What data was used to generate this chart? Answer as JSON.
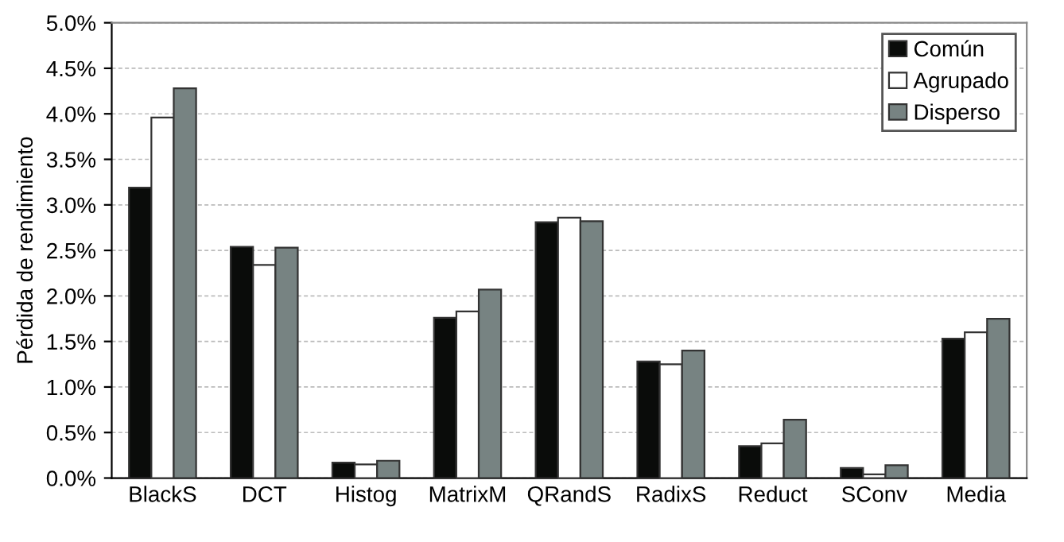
{
  "chart_data": {
    "type": "bar",
    "ylabel": "Pérdida de rendimiento",
    "categories": [
      "BlackS",
      "DCT",
      "Histog",
      "MatrixM",
      "QRandS",
      "RadixS",
      "Reduct",
      "SConv",
      "Media"
    ],
    "series": [
      {
        "name": "Común",
        "color": "#0a0c0a",
        "values": [
          3.19,
          2.54,
          0.17,
          1.76,
          2.81,
          1.28,
          0.35,
          0.11,
          1.53
        ]
      },
      {
        "name": "Agrupado",
        "color": "#ffffff",
        "values": [
          3.96,
          2.34,
          0.15,
          1.83,
          2.86,
          1.25,
          0.38,
          0.04,
          1.6
        ]
      },
      {
        "name": "Disperso",
        "color": "#778382",
        "values": [
          4.28,
          2.53,
          0.19,
          2.07,
          2.82,
          1.4,
          0.64,
          0.14,
          1.75
        ]
      }
    ],
    "ylim": [
      0,
      5
    ],
    "yticks": [
      {
        "value": 0,
        "label": "0.0%"
      },
      {
        "value": 0.5,
        "label": "0.5%"
      },
      {
        "value": 1,
        "label": "1.0%"
      },
      {
        "value": 1.5,
        "label": "1.5%"
      },
      {
        "value": 2,
        "label": "2.0%"
      },
      {
        "value": 2.5,
        "label": "2.5%"
      },
      {
        "value": 3,
        "label": "3.0%"
      },
      {
        "value": 3.5,
        "label": "3.5%"
      },
      {
        "value": 4,
        "label": "4.0%"
      },
      {
        "value": 4.5,
        "label": "4.5%"
      },
      {
        "value": 5,
        "label": "5.0%"
      }
    ],
    "grid": "y",
    "legend": "top right"
  }
}
